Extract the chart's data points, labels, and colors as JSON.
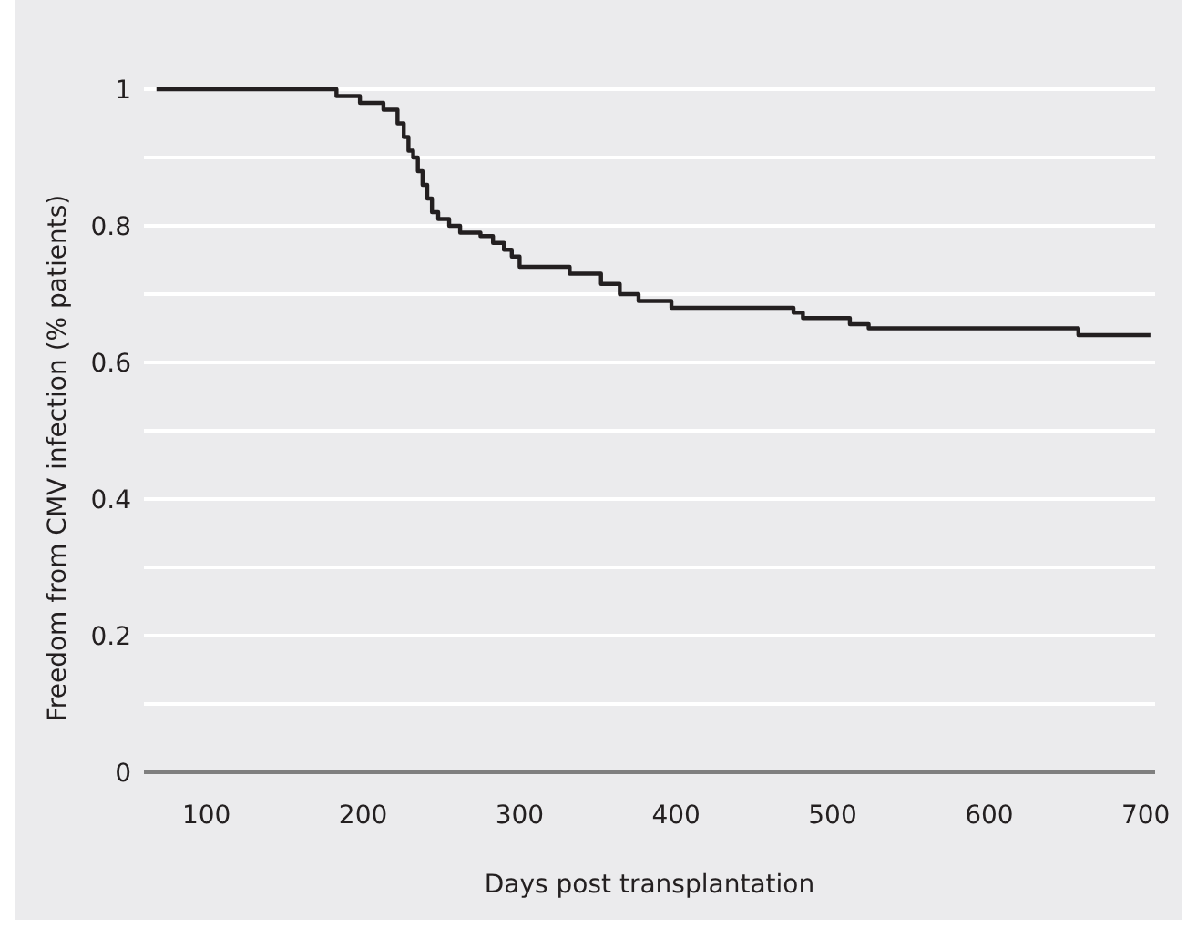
{
  "chart_data": {
    "type": "step",
    "xlabel": "Days post transplantation",
    "ylabel": "Freedom from CMV infection (% patients)",
    "x": [
      68,
      183,
      198,
      213,
      222,
      226,
      229,
      232,
      235,
      238,
      241,
      244,
      248,
      255,
      262,
      275,
      283,
      290,
      295,
      300,
      332,
      352,
      364,
      376,
      397,
      475,
      481,
      511,
      523,
      657,
      703
    ],
    "series": [
      {
        "color": "#231f20",
        "values": [
          1,
          0.99,
          0.98,
          0.97,
          0.95,
          0.93,
          0.91,
          0.9,
          0.88,
          0.86,
          0.84,
          0.82,
          0.81,
          0.8,
          0.79,
          0.785,
          0.775,
          0.765,
          0.755,
          0.74,
          0.73,
          0.715,
          0.7,
          0.69,
          0.68,
          0.673,
          0.665,
          0.656,
          0.65,
          0.64,
          0.64
        ]
      }
    ],
    "xlim": [
      60,
      706
    ],
    "xticks": [
      100,
      200,
      300,
      400,
      500,
      600,
      700
    ],
    "ylim": [
      0,
      1
    ],
    "yticks": [
      0,
      {
        "value": 0.1,
        "label": null
      },
      0.2,
      {
        "value": 0.3,
        "label": null
      },
      0.4,
      {
        "value": 0.5,
        "label": null
      },
      0.6,
      {
        "value": 0.7,
        "label": null
      },
      0.8,
      {
        "value": 0.9,
        "label": null
      },
      1
    ],
    "grid": "y",
    "line_style": "solid"
  }
}
